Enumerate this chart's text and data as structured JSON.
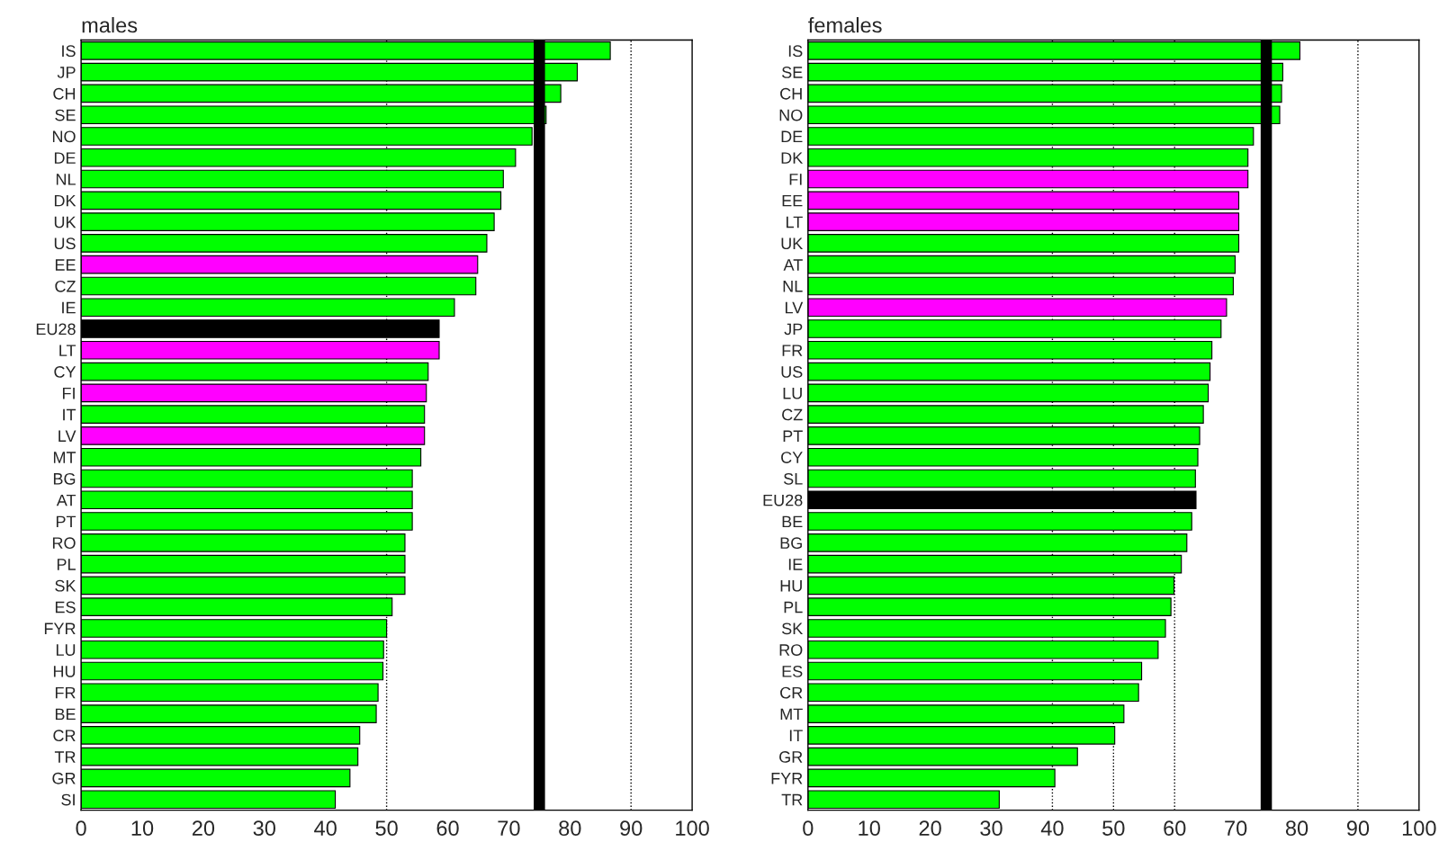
{
  "chart_data": [
    {
      "type": "bar",
      "orientation": "horizontal",
      "title": "males",
      "categories": [
        "IS",
        "JP",
        "CH",
        "SE",
        "NO",
        "DE",
        "NL",
        "DK",
        "UK",
        "US",
        "EE",
        "CZ",
        "IE",
        "EU28",
        "LT",
        "CY",
        "FI",
        "IT",
        "LV",
        "MT",
        "BG",
        "AT",
        "PT",
        "RO",
        "PL",
        "SK",
        "ES",
        "FYR",
        "LU",
        "HU",
        "FR",
        "BE",
        "CR",
        "TR",
        "GR",
        "SI"
      ],
      "values": [
        86.6,
        81.2,
        78.5,
        76.1,
        73.8,
        71.1,
        69.1,
        68.7,
        67.6,
        66.4,
        64.9,
        64.6,
        61.1,
        58.6,
        58.6,
        56.8,
        56.5,
        56.2,
        56.2,
        55.6,
        54.2,
        54.2,
        54.2,
        53.0,
        53.0,
        53.0,
        50.9,
        50.0,
        49.5,
        49.4,
        48.6,
        48.3,
        45.6,
        45.3,
        44.0,
        41.6
      ],
      "colors": [
        "#00ff00",
        "#00ff00",
        "#00ff00",
        "#00ff00",
        "#00ff00",
        "#00ff00",
        "#00ff00",
        "#00ff00",
        "#00ff00",
        "#00ff00",
        "#ff00ff",
        "#00ff00",
        "#00ff00",
        "#000000",
        "#ff00ff",
        "#00ff00",
        "#ff00ff",
        "#00ff00",
        "#ff00ff",
        "#00ff00",
        "#00ff00",
        "#00ff00",
        "#00ff00",
        "#00ff00",
        "#00ff00",
        "#00ff00",
        "#00ff00",
        "#00ff00",
        "#00ff00",
        "#00ff00",
        "#00ff00",
        "#00ff00",
        "#00ff00",
        "#00ff00",
        "#00ff00",
        "#00ff00"
      ],
      "xlim": [
        0,
        100
      ],
      "xticks": [
        0,
        10,
        20,
        30,
        40,
        50,
        60,
        70,
        80,
        90,
        100
      ],
      "ref_lines": [
        {
          "axis": "x",
          "value": 50,
          "color": "#000000",
          "line_style": "dotted"
        },
        {
          "axis": "x",
          "value": 90,
          "color": "#000000",
          "line_style": "dotted"
        },
        {
          "axis": "x",
          "value": 75,
          "color": "#000000",
          "line_style": "solid"
        }
      ]
    },
    {
      "type": "bar",
      "orientation": "horizontal",
      "title": "females",
      "categories": [
        "IS",
        "SE",
        "CH",
        "NO",
        "DE",
        "DK",
        "FI",
        "EE",
        "LT",
        "UK",
        "AT",
        "NL",
        "LV",
        "JP",
        "FR",
        "US",
        "LU",
        "CZ",
        "PT",
        "CY",
        "SL",
        "EU28",
        "BE",
        "BG",
        "IE",
        "HU",
        "PL",
        "SK",
        "RO",
        "ES",
        "CR",
        "MT",
        "IT",
        "GR",
        "FYR",
        "TR"
      ],
      "values": [
        80.5,
        77.7,
        77.5,
        77.2,
        72.9,
        72.0,
        72.0,
        70.5,
        70.5,
        70.5,
        69.9,
        69.6,
        68.5,
        67.6,
        66.1,
        65.8,
        65.5,
        64.7,
        64.1,
        63.8,
        63.4,
        63.5,
        62.8,
        62.0,
        61.1,
        59.9,
        59.4,
        58.5,
        57.3,
        54.6,
        54.1,
        51.7,
        50.2,
        44.1,
        40.4,
        31.3
      ],
      "colors": [
        "#00ff00",
        "#00ff00",
        "#00ff00",
        "#00ff00",
        "#00ff00",
        "#00ff00",
        "#ff00ff",
        "#ff00ff",
        "#ff00ff",
        "#00ff00",
        "#00ff00",
        "#00ff00",
        "#ff00ff",
        "#00ff00",
        "#00ff00",
        "#00ff00",
        "#00ff00",
        "#00ff00",
        "#00ff00",
        "#00ff00",
        "#00ff00",
        "#000000",
        "#00ff00",
        "#00ff00",
        "#00ff00",
        "#00ff00",
        "#00ff00",
        "#00ff00",
        "#00ff00",
        "#00ff00",
        "#00ff00",
        "#00ff00",
        "#00ff00",
        "#00ff00",
        "#00ff00",
        "#00ff00"
      ],
      "xlim": [
        0,
        100
      ],
      "xticks": [
        0,
        10,
        20,
        30,
        40,
        50,
        60,
        70,
        80,
        90,
        100
      ],
      "ref_lines": [
        {
          "axis": "x",
          "value": 40,
          "color": "#000000",
          "line_style": "dotted"
        },
        {
          "axis": "x",
          "value": 50,
          "color": "#000000",
          "line_style": "dotted"
        },
        {
          "axis": "x",
          "value": 60,
          "color": "#000000",
          "line_style": "dotted"
        },
        {
          "axis": "x",
          "value": 90,
          "color": "#000000",
          "line_style": "dotted"
        },
        {
          "axis": "x",
          "value": 75,
          "color": "#000000",
          "line_style": "solid"
        }
      ]
    }
  ]
}
